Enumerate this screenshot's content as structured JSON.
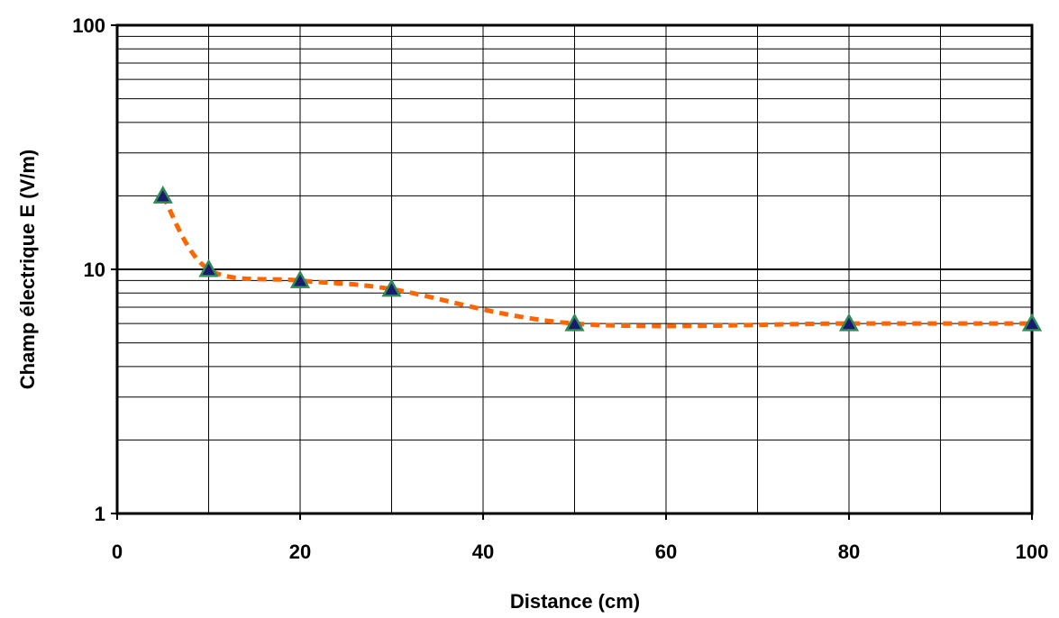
{
  "chart_data": {
    "type": "line",
    "title": "",
    "xlabel": "Distance (cm)",
    "ylabel": "Champ électrique E (V/m)",
    "xlim": [
      0,
      100
    ],
    "ylim": [
      1,
      100
    ],
    "yscale": "log",
    "grid": true,
    "legend": "none",
    "x_ticks": [
      "0",
      "20",
      "40",
      "60",
      "80",
      "100"
    ],
    "y_ticks": [
      "1",
      "10",
      "100"
    ],
    "series": [
      {
        "x": [
          5,
          10,
          20,
          30,
          50,
          80,
          100
        ],
        "y": [
          20,
          10,
          9,
          8.3,
          6,
          6,
          6
        ],
        "marker": "triangle",
        "marker_fill": "#1a1a6e",
        "marker_edge": "#2e8b57",
        "line_color": "#ff6600",
        "line_style": "dashed"
      }
    ]
  }
}
